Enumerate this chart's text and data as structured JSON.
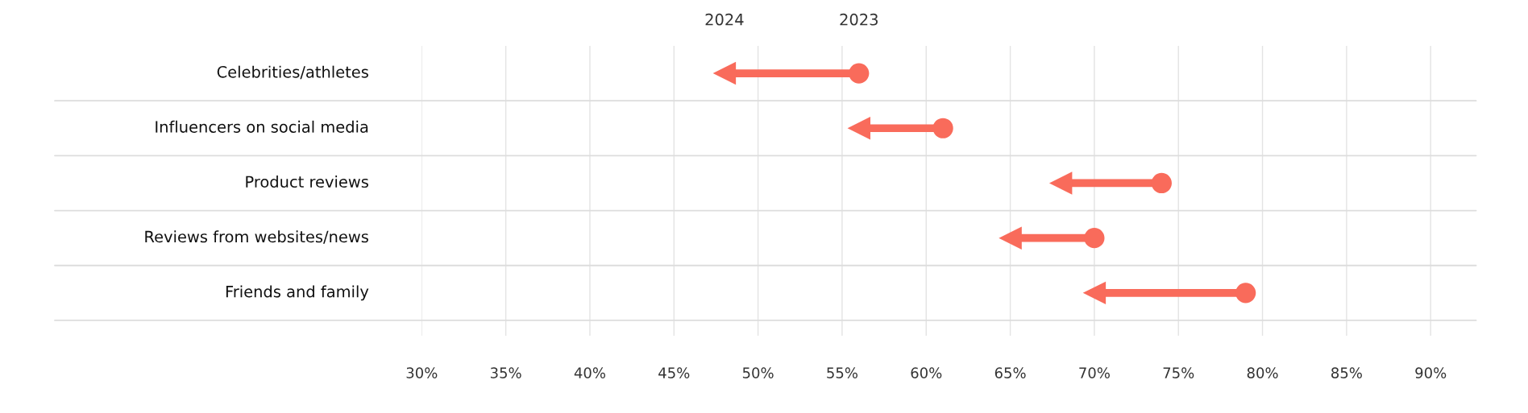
{
  "chart_data": {
    "type": "scatter",
    "orientation": "horizontal",
    "categories": [
      "Celebrities/athletes",
      "Influencers on social media",
      "Product reviews",
      "Reviews from websites/news",
      "Friends and family"
    ],
    "series": [
      {
        "name": "2024",
        "color": "#f96b5b",
        "marker": "triangle",
        "values": [
          48,
          56,
          68,
          65,
          70
        ]
      },
      {
        "name": "2023",
        "color": "#f96b5b",
        "marker": "circle",
        "values": [
          56,
          61,
          74,
          70,
          79
        ]
      }
    ],
    "xlim": [
      30,
      92.7
    ],
    "xticks": [
      {
        "value": 30,
        "label": "30%"
      },
      {
        "value": 35,
        "label": "35%"
      },
      {
        "value": 40,
        "label": "40%"
      },
      {
        "value": 45,
        "label": "45%"
      },
      {
        "value": 50,
        "label": "50%"
      },
      {
        "value": 55,
        "label": "55%"
      },
      {
        "value": 60,
        "label": "60%"
      },
      {
        "value": 65,
        "label": "65%"
      },
      {
        "value": 70,
        "label": "70%"
      },
      {
        "value": 75,
        "label": "75%"
      },
      {
        "value": 80,
        "label": "80%"
      },
      {
        "value": 85,
        "label": "85%"
      },
      {
        "value": 90,
        "label": "90%"
      }
    ],
    "grid": "x",
    "legend": false
  }
}
